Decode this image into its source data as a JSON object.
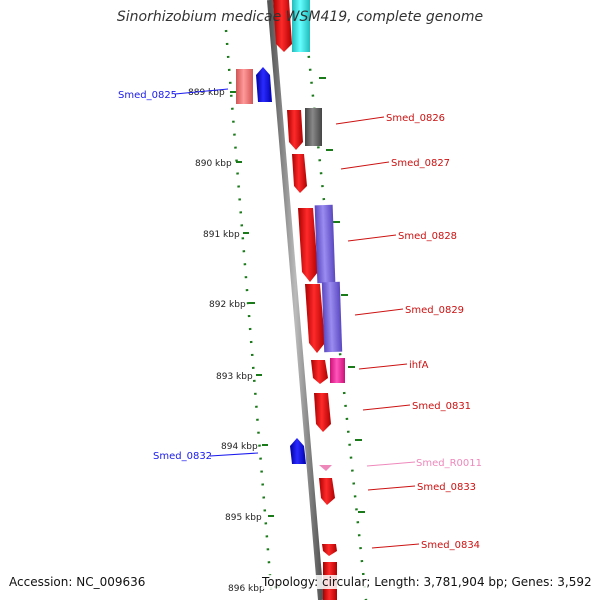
{
  "title": "Sinorhizobium medicae WSM419, complete genome",
  "footer": {
    "accession": "Accession: NC_009636",
    "summary": "Topology: circular; Length: 3,781,904 bp; Genes: 3,592"
  },
  "colors": {
    "cds": "#ee1111",
    "highlight_blue": "#1a1aee",
    "dark_gray": "#666666",
    "cyan": "#22dddd",
    "purple": "#7b68e0",
    "pink": "#ff3399",
    "light_red": "#ee7777",
    "rrna": "#ee88bb",
    "axis": "#888888",
    "track": "#1a7a1a"
  },
  "ticks": [
    {
      "label": "889 kbp"
    },
    {
      "label": "890 kbp"
    },
    {
      "label": "891 kbp"
    },
    {
      "label": "892 kbp"
    },
    {
      "label": "893 kbp"
    },
    {
      "label": "894 kbp"
    },
    {
      "label": "895 kbp"
    },
    {
      "label": "896 kbp"
    }
  ],
  "genes": [
    {
      "name": "Smed_0825",
      "label_color": "#1a1aee",
      "side": "left"
    },
    {
      "name": "Smed_0826",
      "label_color": "#cc1111",
      "side": "right"
    },
    {
      "name": "Smed_0827",
      "label_color": "#cc1111",
      "side": "right"
    },
    {
      "name": "Smed_0828",
      "label_color": "#cc1111",
      "side": "right"
    },
    {
      "name": "Smed_0829",
      "label_color": "#cc1111",
      "side": "right"
    },
    {
      "name": "ihfA",
      "label_color": "#cc1111",
      "side": "right"
    },
    {
      "name": "Smed_0831",
      "label_color": "#cc1111",
      "side": "right"
    },
    {
      "name": "Smed_0832",
      "label_color": "#1a1aee",
      "side": "left"
    },
    {
      "name": "Smed_R0011",
      "label_color": "#ee88bb",
      "side": "right"
    },
    {
      "name": "Smed_0833",
      "label_color": "#cc1111",
      "side": "right"
    },
    {
      "name": "Smed_0834",
      "label_color": "#cc1111",
      "side": "right"
    }
  ]
}
